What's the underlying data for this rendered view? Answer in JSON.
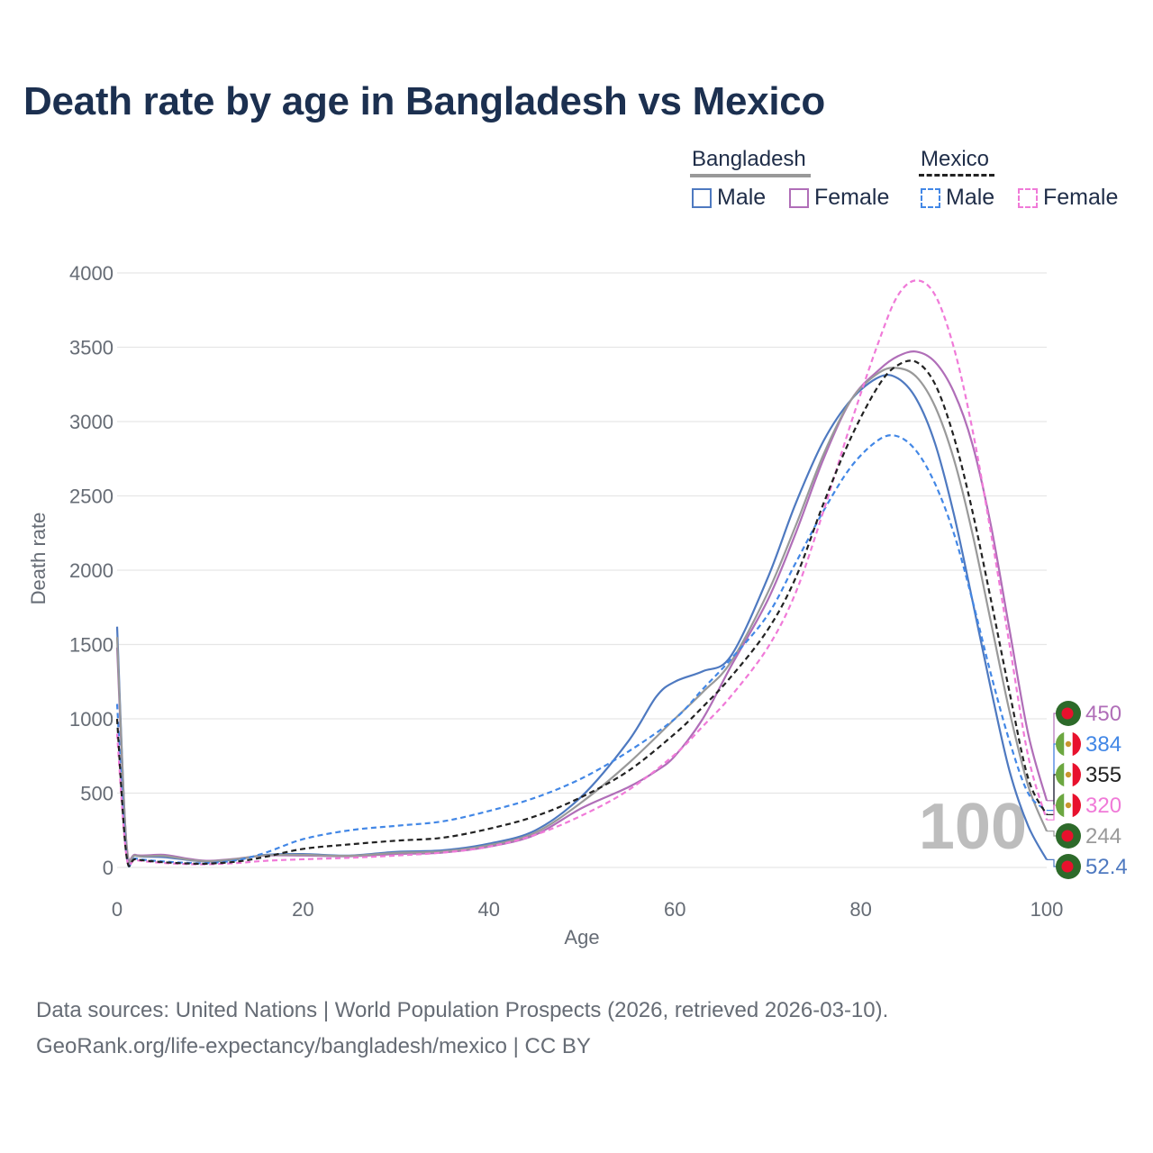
{
  "title": "Death rate by age in Bangladesh vs Mexico",
  "legend": {
    "groups": [
      {
        "label": "Bangladesh",
        "line_color": "#999999",
        "line_style": "solid",
        "items": [
          {
            "label": "Male",
            "color": "#4e79c0",
            "style": "solid"
          },
          {
            "label": "Female",
            "color": "#b06eb8",
            "style": "solid"
          }
        ]
      },
      {
        "label": "Mexico",
        "line_color": "#222222",
        "line_style": "dashed",
        "items": [
          {
            "label": "Male",
            "color": "#4287e6",
            "style": "dashed"
          },
          {
            "label": "Female",
            "color": "#f07ad8",
            "style": "dashed"
          }
        ]
      }
    ]
  },
  "colors": {
    "title": "#1c3050",
    "grid": "#e6e6e6",
    "axis_text": "#666c75",
    "age_watermark": "#bdbdbd",
    "bd_flag_green": "#2d6a2a",
    "bd_flag_red": "#e8112d",
    "mx_flag_green": "#6ca741",
    "mx_flag_red": "#e8112d"
  },
  "chart_data": {
    "type": "line",
    "xlabel": "Age",
    "ylabel": "Death rate",
    "xlim": [
      0,
      100
    ],
    "ylim": [
      0,
      4000
    ],
    "x_ticks": [
      "0",
      "20",
      "40",
      "60",
      "80",
      "100"
    ],
    "y_ticks": [
      "0",
      "500",
      "1000",
      "1500",
      "2000",
      "2500",
      "3000",
      "3500",
      "4000"
    ],
    "highlight_age": "100",
    "series": [
      {
        "name": "Bangladesh Male",
        "country": "Bangladesh",
        "sex": "Male",
        "color": "#4e79c0",
        "dashed": false,
        "end_label": "52.4",
        "points": [
          [
            0,
            1620
          ],
          [
            1,
            150
          ],
          [
            2,
            80
          ],
          [
            5,
            70
          ],
          [
            8,
            48
          ],
          [
            10,
            40
          ],
          [
            13,
            55
          ],
          [
            16,
            85
          ],
          [
            20,
            90
          ],
          [
            25,
            80
          ],
          [
            30,
            105
          ],
          [
            35,
            115
          ],
          [
            40,
            160
          ],
          [
            45,
            250
          ],
          [
            50,
            480
          ],
          [
            55,
            850
          ],
          [
            58,
            1150
          ],
          [
            60,
            1250
          ],
          [
            63,
            1320
          ],
          [
            66,
            1420
          ],
          [
            70,
            1950
          ],
          [
            73,
            2450
          ],
          [
            76,
            2870
          ],
          [
            79,
            3150
          ],
          [
            82,
            3300
          ],
          [
            84,
            3290
          ],
          [
            86,
            3150
          ],
          [
            88,
            2850
          ],
          [
            90,
            2380
          ],
          [
            92,
            1800
          ],
          [
            94,
            1200
          ],
          [
            96,
            650
          ],
          [
            98,
            280
          ],
          [
            100,
            52.4
          ]
        ]
      },
      {
        "name": "Bangladesh Female",
        "country": "Bangladesh",
        "sex": "Female",
        "color": "#b06eb8",
        "dashed": false,
        "end_label": "450",
        "points": [
          [
            0,
            1480
          ],
          [
            1,
            170
          ],
          [
            2,
            85
          ],
          [
            5,
            85
          ],
          [
            8,
            55
          ],
          [
            10,
            45
          ],
          [
            13,
            60
          ],
          [
            16,
            80
          ],
          [
            20,
            80
          ],
          [
            25,
            75
          ],
          [
            30,
            90
          ],
          [
            35,
            100
          ],
          [
            40,
            140
          ],
          [
            45,
            220
          ],
          [
            50,
            400
          ],
          [
            55,
            540
          ],
          [
            58,
            650
          ],
          [
            60,
            750
          ],
          [
            63,
            1000
          ],
          [
            66,
            1350
          ],
          [
            70,
            1800
          ],
          [
            73,
            2250
          ],
          [
            76,
            2750
          ],
          [
            79,
            3150
          ],
          [
            82,
            3350
          ],
          [
            84,
            3440
          ],
          [
            86,
            3470
          ],
          [
            88,
            3400
          ],
          [
            90,
            3200
          ],
          [
            92,
            2850
          ],
          [
            94,
            2300
          ],
          [
            96,
            1600
          ],
          [
            98,
            900
          ],
          [
            100,
            450
          ]
        ]
      },
      {
        "name": "Bangladesh (both sexes)",
        "country": "Bangladesh",
        "sex": "Both",
        "color": "#999999",
        "dashed": false,
        "end_label": "244",
        "points": [
          [
            0,
            1550
          ],
          [
            1,
            160
          ],
          [
            2,
            80
          ],
          [
            5,
            78
          ],
          [
            8,
            50
          ],
          [
            10,
            42
          ],
          [
            13,
            58
          ],
          [
            16,
            82
          ],
          [
            20,
            85
          ],
          [
            25,
            78
          ],
          [
            30,
            98
          ],
          [
            35,
            108
          ],
          [
            40,
            150
          ],
          [
            45,
            235
          ],
          [
            50,
            440
          ],
          [
            55,
            700
          ],
          [
            60,
            1000
          ],
          [
            63,
            1180
          ],
          [
            66,
            1380
          ],
          [
            70,
            1850
          ],
          [
            73,
            2300
          ],
          [
            76,
            2780
          ],
          [
            79,
            3150
          ],
          [
            82,
            3330
          ],
          [
            84,
            3360
          ],
          [
            86,
            3300
          ],
          [
            88,
            3100
          ],
          [
            90,
            2750
          ],
          [
            92,
            2250
          ],
          [
            94,
            1650
          ],
          [
            96,
            1050
          ],
          [
            98,
            550
          ],
          [
            100,
            244
          ]
        ]
      },
      {
        "name": "Mexico Male",
        "country": "Mexico",
        "sex": "Male",
        "color": "#4287e6",
        "dashed": true,
        "end_label": "384",
        "points": [
          [
            0,
            1100
          ],
          [
            1,
            90
          ],
          [
            2,
            60
          ],
          [
            5,
            40
          ],
          [
            8,
            30
          ],
          [
            10,
            30
          ],
          [
            13,
            50
          ],
          [
            16,
            100
          ],
          [
            20,
            190
          ],
          [
            25,
            250
          ],
          [
            30,
            280
          ],
          [
            35,
            310
          ],
          [
            40,
            380
          ],
          [
            45,
            470
          ],
          [
            50,
            600
          ],
          [
            55,
            780
          ],
          [
            60,
            1000
          ],
          [
            63,
            1200
          ],
          [
            66,
            1400
          ],
          [
            70,
            1700
          ],
          [
            73,
            2050
          ],
          [
            76,
            2400
          ],
          [
            79,
            2700
          ],
          [
            82,
            2880
          ],
          [
            84,
            2900
          ],
          [
            86,
            2800
          ],
          [
            88,
            2580
          ],
          [
            90,
            2250
          ],
          [
            92,
            1800
          ],
          [
            94,
            1300
          ],
          [
            96,
            850
          ],
          [
            98,
            500
          ],
          [
            100,
            384
          ]
        ]
      },
      {
        "name": "Mexico Female",
        "country": "Mexico",
        "sex": "Female",
        "color": "#f07ad8",
        "dashed": true,
        "end_label": "320",
        "points": [
          [
            0,
            900
          ],
          [
            1,
            80
          ],
          [
            2,
            50
          ],
          [
            5,
            30
          ],
          [
            8,
            22
          ],
          [
            10,
            22
          ],
          [
            13,
            30
          ],
          [
            16,
            45
          ],
          [
            20,
            55
          ],
          [
            25,
            65
          ],
          [
            30,
            80
          ],
          [
            35,
            100
          ],
          [
            40,
            140
          ],
          [
            45,
            220
          ],
          [
            50,
            350
          ],
          [
            55,
            520
          ],
          [
            60,
            760
          ],
          [
            63,
            950
          ],
          [
            66,
            1150
          ],
          [
            70,
            1480
          ],
          [
            73,
            1850
          ],
          [
            76,
            2400
          ],
          [
            79,
            3000
          ],
          [
            82,
            3550
          ],
          [
            84,
            3850
          ],
          [
            86,
            3950
          ],
          [
            88,
            3850
          ],
          [
            90,
            3500
          ],
          [
            92,
            2950
          ],
          [
            94,
            2250
          ],
          [
            96,
            1500
          ],
          [
            98,
            750
          ],
          [
            100,
            320
          ]
        ]
      },
      {
        "name": "Mexico (both sexes)",
        "country": "Mexico",
        "sex": "Both",
        "color": "#222222",
        "dashed": true,
        "end_label": "355",
        "points": [
          [
            0,
            1000
          ],
          [
            1,
            85
          ],
          [
            2,
            55
          ],
          [
            5,
            35
          ],
          [
            8,
            26
          ],
          [
            10,
            26
          ],
          [
            13,
            40
          ],
          [
            16,
            72
          ],
          [
            20,
            125
          ],
          [
            25,
            155
          ],
          [
            30,
            180
          ],
          [
            35,
            200
          ],
          [
            40,
            260
          ],
          [
            45,
            345
          ],
          [
            50,
            475
          ],
          [
            55,
            650
          ],
          [
            60,
            900
          ],
          [
            63,
            1080
          ],
          [
            66,
            1280
          ],
          [
            70,
            1600
          ],
          [
            73,
            1950
          ],
          [
            76,
            2450
          ],
          [
            79,
            2900
          ],
          [
            82,
            3250
          ],
          [
            84,
            3380
          ],
          [
            86,
            3400
          ],
          [
            88,
            3250
          ],
          [
            90,
            2900
          ],
          [
            92,
            2400
          ],
          [
            94,
            1800
          ],
          [
            96,
            1180
          ],
          [
            98,
            600
          ],
          [
            100,
            355
          ]
        ]
      }
    ]
  },
  "end_labels": [
    {
      "value": "450",
      "country": "Bangladesh",
      "color": "#b06eb8"
    },
    {
      "value": "384",
      "country": "Mexico",
      "color": "#4287e6"
    },
    {
      "value": "355",
      "country": "Mexico",
      "color": "#222222"
    },
    {
      "value": "320",
      "country": "Mexico",
      "color": "#f07ad8"
    },
    {
      "value": "244",
      "country": "Bangladesh",
      "color": "#999999"
    },
    {
      "value": "52.4",
      "country": "Bangladesh",
      "color": "#4e79c0"
    }
  ],
  "source": {
    "line1": "Data sources: United Nations | World Population Prospects (2026, retrieved 2026-03-10).",
    "line2": "GeoRank.org/life-expectancy/bangladesh/mexico | CC BY"
  }
}
